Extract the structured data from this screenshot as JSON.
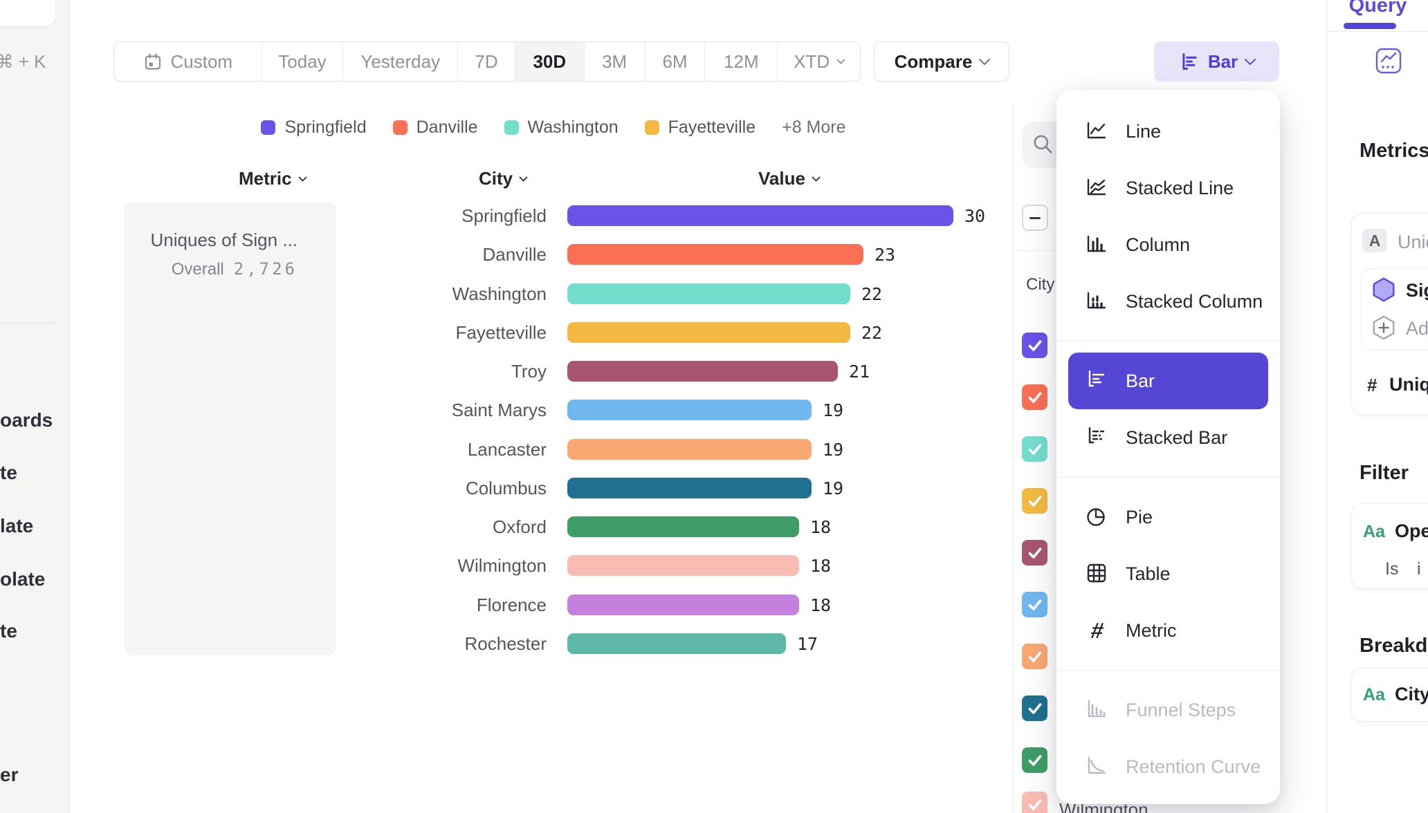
{
  "left_rail": {
    "shortcut_hint": "⌘ + K",
    "nav_fragments": [
      "oards",
      "te",
      "late",
      "olate",
      "te",
      "er"
    ]
  },
  "toolbar": {
    "date_tabs": [
      "Custom",
      "Today",
      "Yesterday",
      "7D",
      "30D",
      "3M",
      "6M",
      "12M",
      "XTD"
    ],
    "selected_tab": "30D",
    "compare_label": "Compare",
    "chart_type_label": "Bar"
  },
  "legend": {
    "items": [
      {
        "label": "Springfield",
        "color": "#6C52E8"
      },
      {
        "label": "Danville",
        "color": "#F97055"
      },
      {
        "label": "Washington",
        "color": "#74DECD"
      },
      {
        "label": "Fayetteville",
        "color": "#F3B942"
      }
    ],
    "more_label": "+8 More"
  },
  "columns": {
    "metric": "Metric",
    "city": "City",
    "value": "Value"
  },
  "metric_card": {
    "title": "Uniques of Sign ...",
    "overall_label": "Overall",
    "overall_value": "2,726"
  },
  "chart_data": {
    "type": "bar",
    "orientation": "horizontal",
    "title": "Uniques of Sign ...",
    "overall_total": 2726,
    "categories": [
      "Springfield",
      "Danville",
      "Washington",
      "Fayetteville",
      "Troy",
      "Saint Marys",
      "Lancaster",
      "Columbus",
      "Oxford",
      "Wilmington",
      "Florence",
      "Rochester"
    ],
    "values": [
      30,
      23,
      22,
      22,
      21,
      19,
      19,
      19,
      18,
      18,
      18,
      17
    ],
    "colors": [
      "#6C52E8",
      "#F97055",
      "#74DECD",
      "#F3B942",
      "#A85670",
      "#70B8F0",
      "#F9A872",
      "#20708F",
      "#3F9D68",
      "#F9BCB2",
      "#C480DC",
      "#5EB8A9"
    ],
    "xlabel": "Value",
    "ylabel": "City",
    "xlim": [
      0,
      30
    ],
    "grid": false,
    "legend_position": "top"
  },
  "breakdown_panel": {
    "column_label": "City",
    "select_all_state": "indeterminate",
    "checkbox_colors": [
      "#6C52E8",
      "#F97055",
      "#74DECD",
      "#F3B942",
      "#A85670",
      "#70B8F0",
      "#F9A872",
      "#20708F",
      "#3F9D68",
      "#F9BCB2"
    ],
    "partial_visible_label": "Wilmington"
  },
  "chart_menu": {
    "items": [
      "Line",
      "Stacked Line",
      "Column",
      "Stacked Column",
      "Bar",
      "Stacked Bar",
      "Pie",
      "Table",
      "Metric",
      "Funnel Steps",
      "Retention Curve"
    ],
    "selected": "Bar",
    "disabled": [
      "Funnel Steps",
      "Retention Curve"
    ]
  },
  "sidebar": {
    "tab_label": "Query",
    "metrics_heading": "Metrics",
    "metric_group": {
      "badge": "A",
      "label": "Uniq"
    },
    "event_row": {
      "label": "Sig"
    },
    "add_row": {
      "label": "Ad"
    },
    "measure_row": {
      "prefix": "#",
      "label": "Uniqu"
    },
    "filter_heading": "Filter",
    "filter_row": {
      "badge": "Aa",
      "label": "Ope"
    },
    "filter_clause": {
      "operator": "Is",
      "value": "i"
    },
    "breakdown_heading": "Breakdo",
    "breakdown_row": {
      "badge": "Aa",
      "label": "City"
    }
  }
}
